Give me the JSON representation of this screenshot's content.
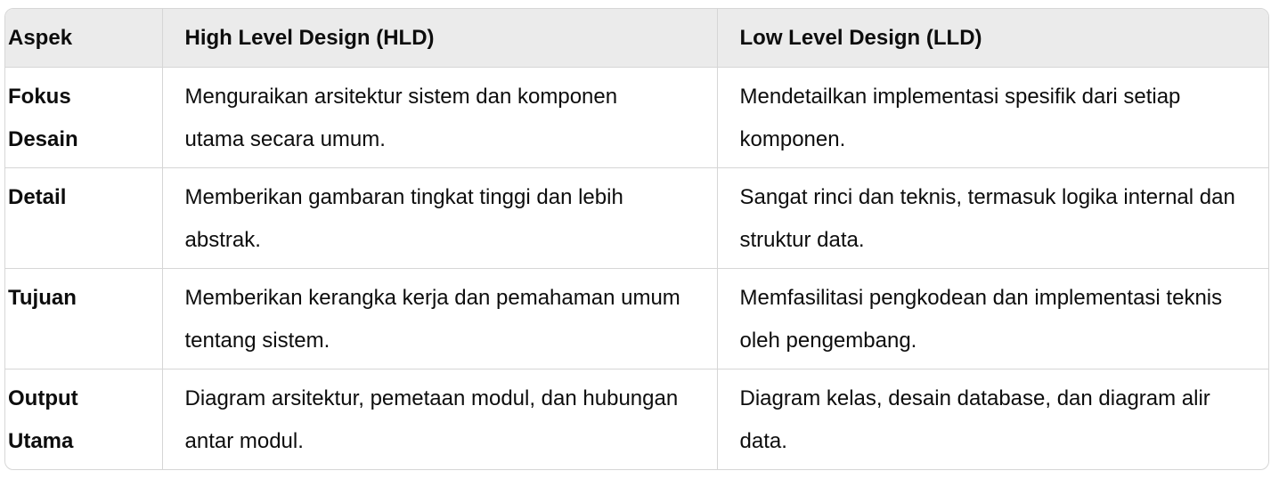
{
  "table": {
    "header": [
      "Aspek",
      "High Level Design (HLD)",
      "Low Level Design (LLD)"
    ],
    "rows": [
      [
        "Fokus Desain",
        "Menguraikan arsitektur sistem dan komponen utama secara umum.",
        "Mendetailkan implementasi spesifik dari setiap komponen."
      ],
      [
        "Detail",
        "Memberikan gambaran tingkat tinggi dan lebih abstrak.",
        "Sangat rinci dan teknis, termasuk logika internal dan struktur data."
      ],
      [
        "Tujuan",
        "Memberikan kerangka kerja dan pemahaman umum tentang sistem.",
        "Memfasilitasi pengkodean dan implementasi teknis oleh pengembang."
      ],
      [
        "Output Utama",
        "Diagram arsitektur, pemetaan modul, dan hubungan antar modul.",
        "Diagram kelas, desain database, dan diagram alir data."
      ]
    ]
  }
}
